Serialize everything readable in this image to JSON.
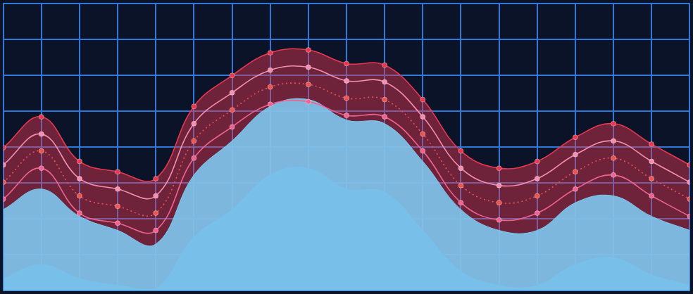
{
  "chart_data": {
    "type": "line",
    "x": [
      0,
      1,
      2,
      3,
      4,
      5,
      6,
      7,
      8,
      9,
      10,
      11,
      12,
      13,
      14,
      15,
      16,
      17,
      18
    ],
    "xlim": [
      0,
      18
    ],
    "xticks": [
      0,
      1,
      2,
      3,
      4,
      5,
      6,
      7,
      8,
      9,
      10,
      11,
      12,
      13,
      14,
      15,
      16,
      17,
      18
    ],
    "ylim": [
      0,
      8
    ],
    "yticks": [
      0,
      1,
      2,
      3,
      4,
      5,
      6,
      7,
      8
    ],
    "grid": true,
    "tick_labels": false,
    "series": [
      {
        "type": "line",
        "color": "#e8384f",
        "marker": "circle",
        "line_style": "solid",
        "values": [
          3.98,
          4.84,
          3.6,
          3.31,
          3.12,
          5.13,
          5.99,
          6.62,
          6.7,
          6.32,
          6.28,
          5.32,
          3.89,
          3.41,
          3.6,
          4.27,
          4.65,
          4.08,
          3.5
        ]
      },
      {
        "type": "area",
        "color": "#7ec8f0",
        "marker": "none",
        "line_style": "solid",
        "values": [
          2.26,
          2.83,
          2.07,
          1.68,
          1.3,
          3.22,
          4.17,
          5.13,
          5.32,
          4.75,
          4.65,
          3.6,
          2.26,
          1.68,
          1.68,
          2.45,
          2.64,
          2.07,
          1.68
        ]
      },
      {
        "type": "area",
        "color": "#3a7fc0",
        "marker": "none",
        "line_style": "solid",
        "values": [
          0.34,
          0.73,
          0.34,
          0.15,
          0.06,
          1.49,
          2.26,
          3.22,
          3.41,
          2.83,
          2.74,
          1.68,
          0.54,
          0.15,
          0.15,
          0.73,
          0.92,
          0.44,
          0.15
        ]
      },
      {
        "type": "line",
        "color": "#f48fb1",
        "marker": "circle",
        "line_style": "solid",
        "values": [
          3.5,
          4.36,
          3.12,
          2.83,
          2.64,
          4.65,
          5.51,
          6.14,
          6.22,
          5.84,
          5.81,
          4.84,
          3.41,
          2.93,
          3.12,
          3.79,
          4.17,
          3.6,
          3.02
        ]
      },
      {
        "type": "line",
        "color": "#ef5350",
        "marker": "circle",
        "line_style": "dotted",
        "values": [
          3.02,
          3.89,
          2.64,
          2.35,
          2.16,
          4.17,
          5.03,
          5.67,
          5.74,
          5.36,
          5.32,
          4.36,
          2.93,
          2.45,
          2.64,
          3.31,
          3.69,
          3.12,
          2.55
        ]
      },
      {
        "type": "line",
        "color": "#f06292",
        "marker": "circle",
        "line_style": "solid",
        "values": [
          2.55,
          3.41,
          2.16,
          1.88,
          1.68,
          3.69,
          4.56,
          5.19,
          5.26,
          4.88,
          4.84,
          3.89,
          2.45,
          1.97,
          2.16,
          2.83,
          3.22,
          2.64,
          2.07
        ]
      }
    ]
  }
}
